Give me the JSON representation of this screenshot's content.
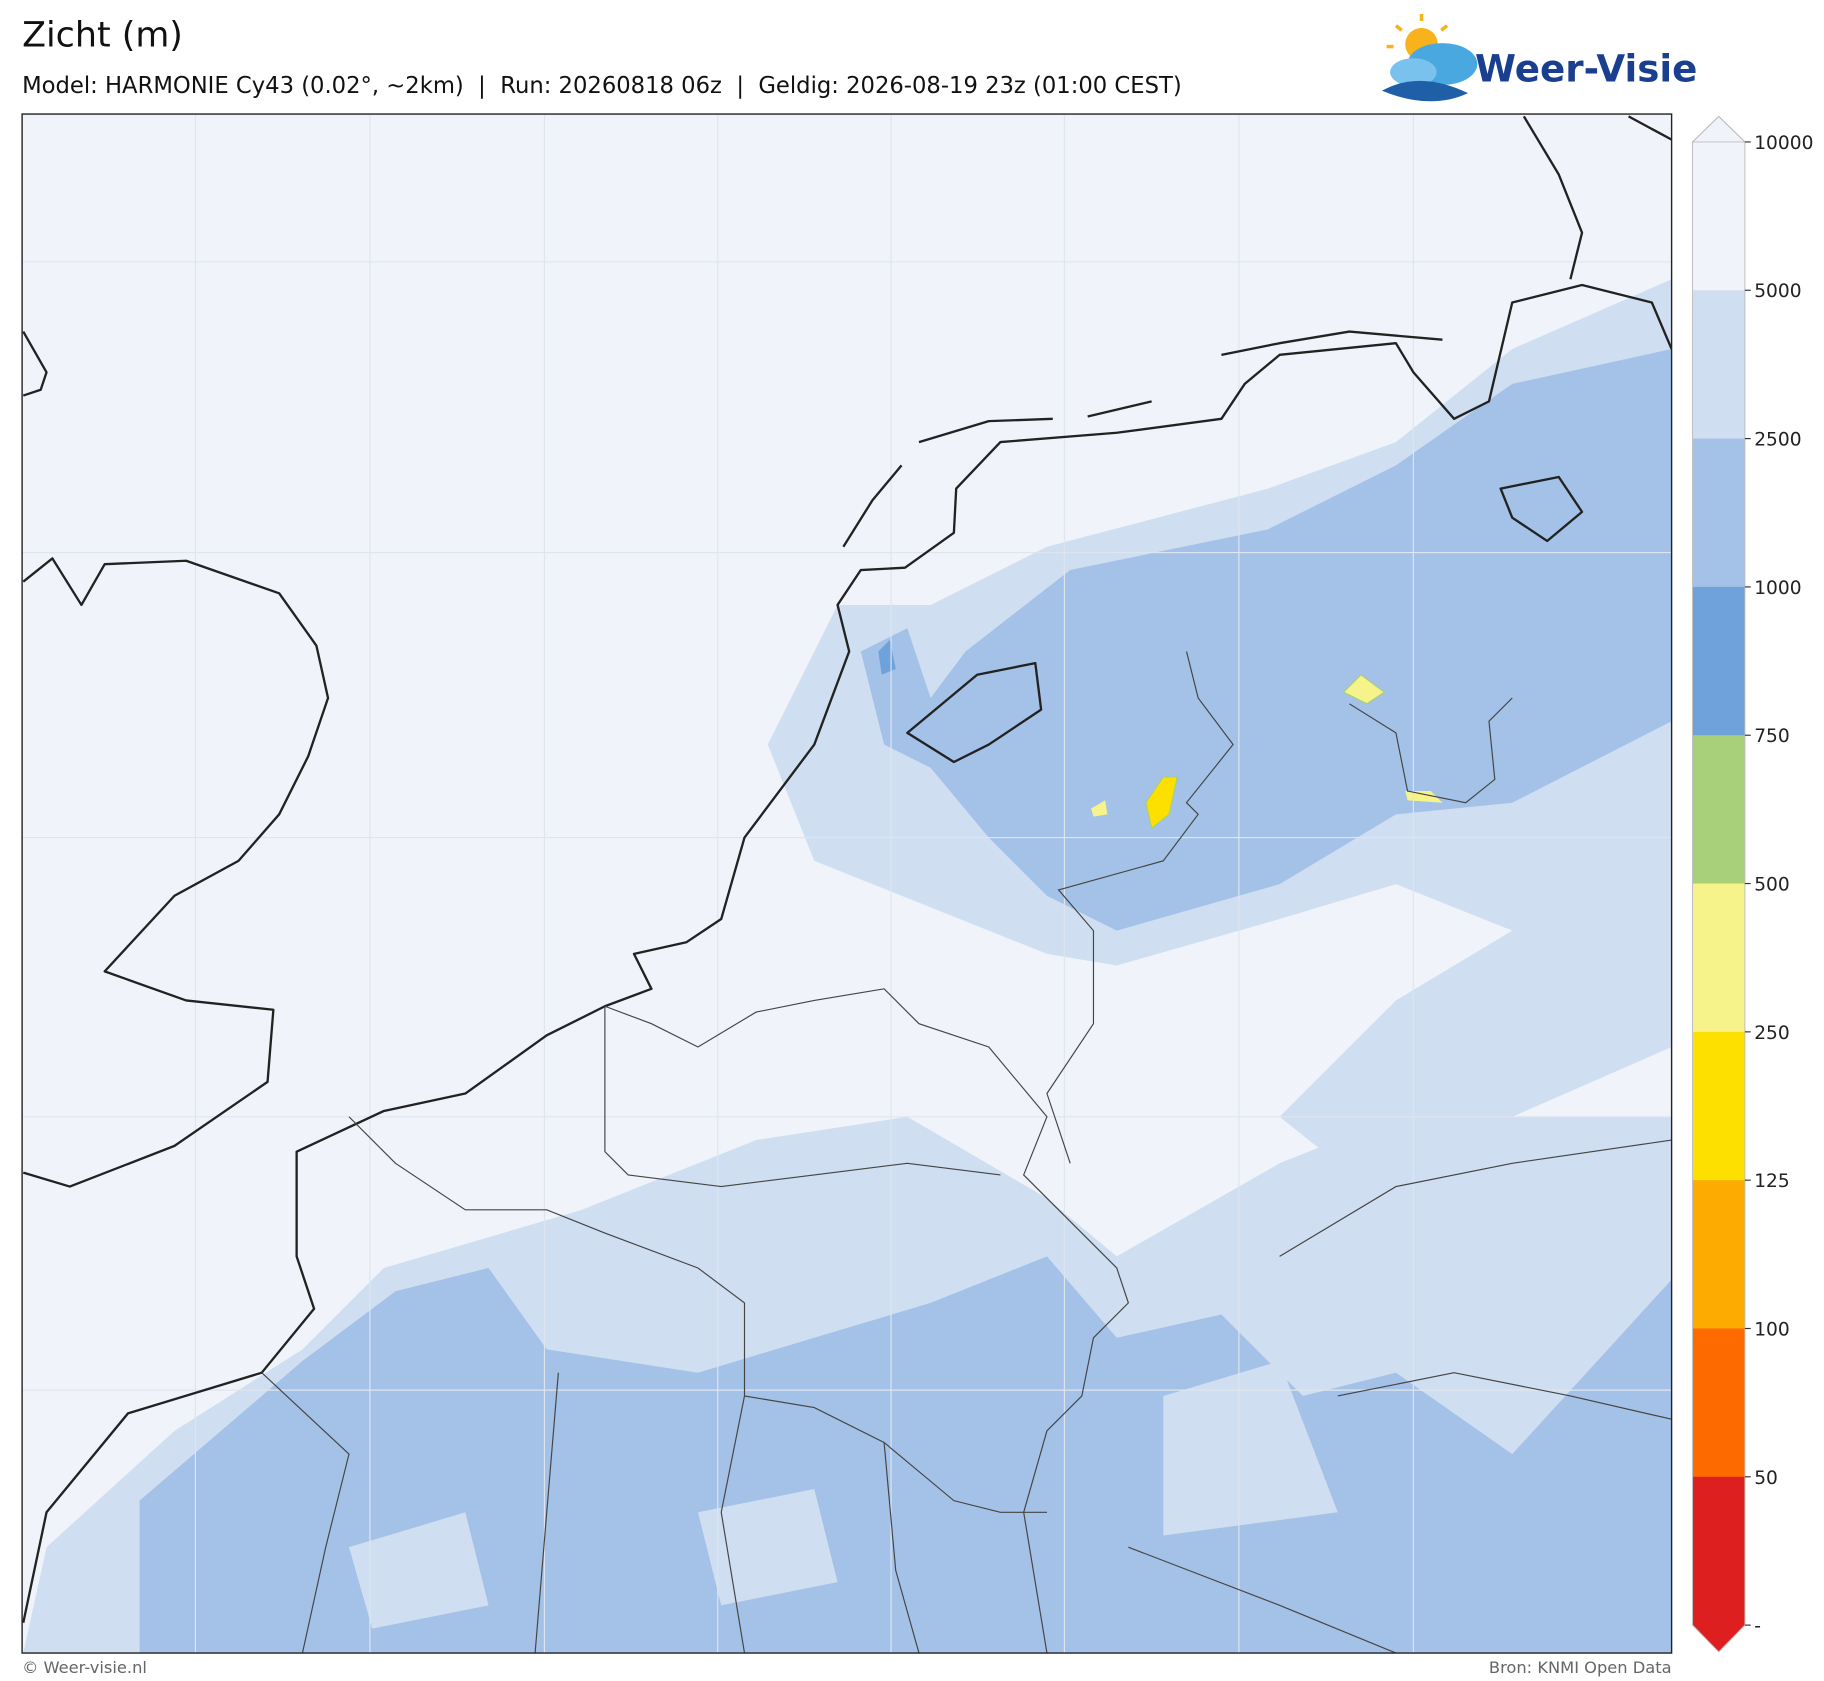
{
  "header": {
    "title": "Zicht (m)",
    "subtitle": "Model: HARMONIE Cy43 (0.02°, ~2km)  |  Run: 20260818 06z  |  Geldig: 2026-08-19 23z (01:00 CEST)"
  },
  "logo": {
    "text": "Weer-Visie"
  },
  "colorbar": {
    "ticks": [
      10000,
      5000,
      2500,
      1000,
      750,
      500,
      250,
      125,
      100,
      50
    ],
    "end_label": "-",
    "colors": [
      "#f0f4fa",
      "#cfdef1",
      "#a4c1e8",
      "#6fa1da",
      "#a8cf7a",
      "#f5f38a",
      "#fde000",
      "#fdab00",
      "#fd6a00",
      "#dd1f1f"
    ]
  },
  "footer": {
    "left": "© Weer-visie.nl",
    "right": "Bron: KNMI Open Data"
  }
}
